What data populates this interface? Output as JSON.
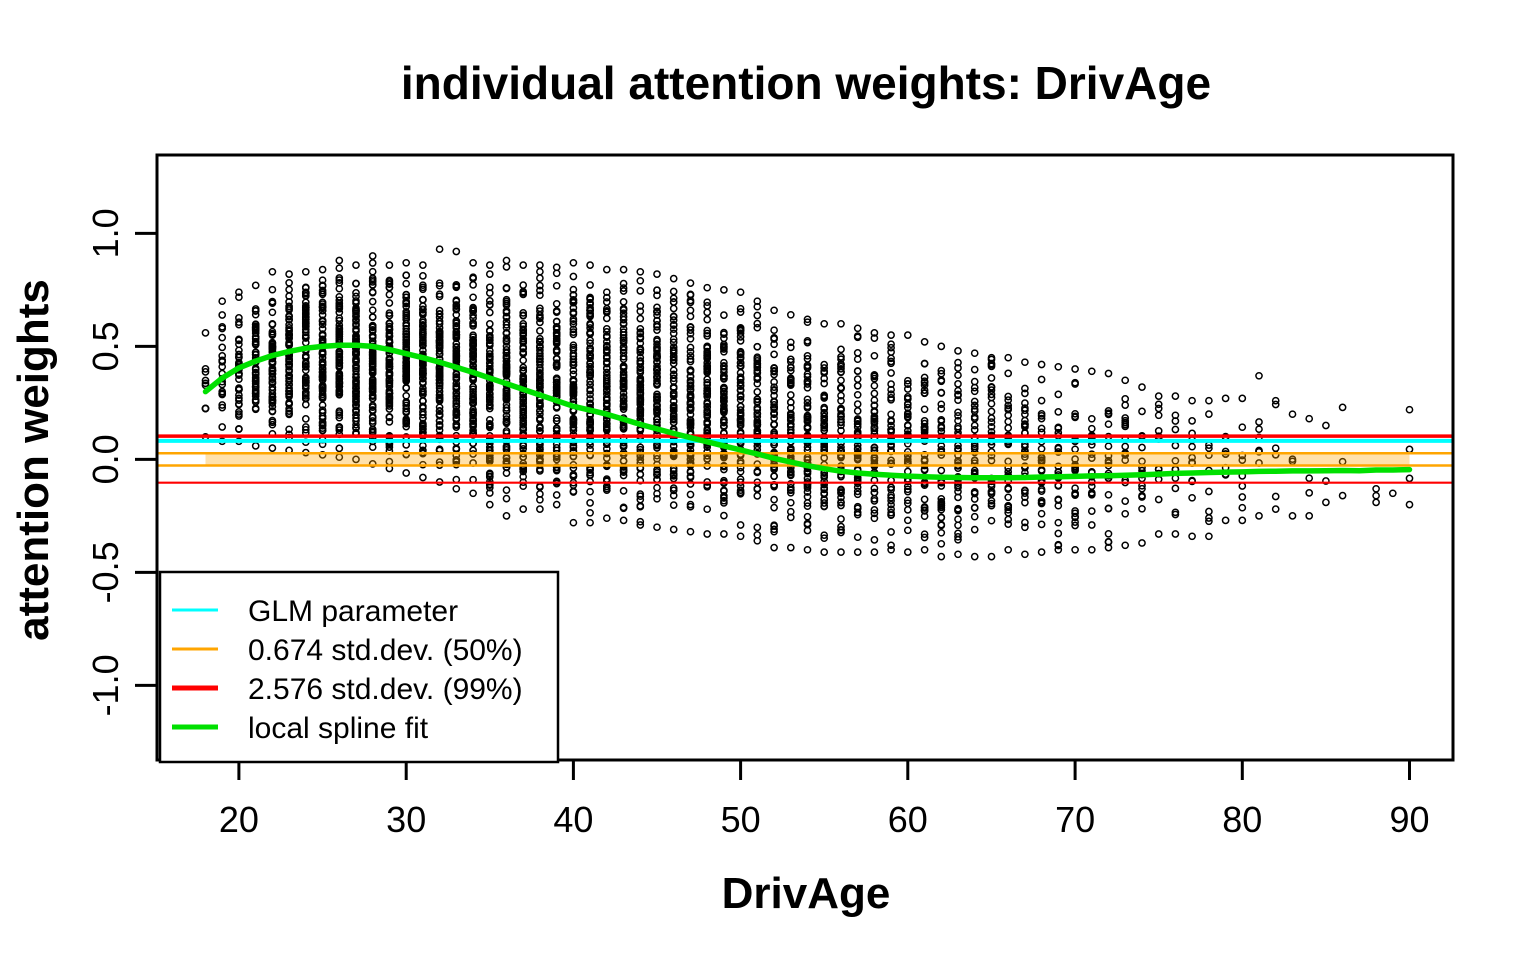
{
  "chart_data": {
    "type": "scatter",
    "title": "individual attention weights: DrivAge",
    "xlabel": "DrivAge",
    "ylabel": "attention weights",
    "xlim": [
      15.1,
      92.6
    ],
    "ylim": [
      -1.33,
      1.347
    ],
    "x_ticks": [
      {
        "v": 20,
        "label": "20"
      },
      {
        "v": 30,
        "label": "30"
      },
      {
        "v": 40,
        "label": "40"
      },
      {
        "v": 50,
        "label": "50"
      },
      {
        "v": 60,
        "label": "60"
      },
      {
        "v": 70,
        "label": "70"
      },
      {
        "v": 80,
        "label": "80"
      },
      {
        "v": 90,
        "label": "90"
      }
    ],
    "y_ticks": [
      {
        "v": -1.0,
        "label": "-1.0"
      },
      {
        "v": -0.5,
        "label": "-0.5"
      },
      {
        "v": 0.0,
        "label": "0.0"
      },
      {
        "v": 0.5,
        "label": "0.5"
      },
      {
        "v": 1.0,
        "label": "1.0"
      }
    ],
    "grid": false,
    "point_style": "open-circle",
    "hlines": {
      "glm_parameter": 0.082,
      "band50": 0.027,
      "band99": 0.103
    },
    "band_fill": {
      "x_range": [
        18,
        90
      ],
      "y_range": [
        -0.027,
        0.027
      ]
    },
    "spline": [
      [
        18,
        0.3
      ],
      [
        19,
        0.36
      ],
      [
        20,
        0.405
      ],
      [
        21,
        0.435
      ],
      [
        22,
        0.46
      ],
      [
        23,
        0.478
      ],
      [
        24,
        0.492
      ],
      [
        25,
        0.5
      ],
      [
        26,
        0.505
      ],
      [
        27,
        0.505
      ],
      [
        28,
        0.5
      ],
      [
        29,
        0.486
      ],
      [
        30,
        0.468
      ],
      [
        31,
        0.45
      ],
      [
        32,
        0.43
      ],
      [
        33,
        0.408
      ],
      [
        34,
        0.385
      ],
      [
        35,
        0.36
      ],
      [
        36,
        0.335
      ],
      [
        37,
        0.31
      ],
      [
        38,
        0.285
      ],
      [
        39,
        0.26
      ],
      [
        40,
        0.235
      ],
      [
        41,
        0.218
      ],
      [
        42,
        0.2
      ],
      [
        43,
        0.178
      ],
      [
        44,
        0.155
      ],
      [
        45,
        0.135
      ],
      [
        46,
        0.115
      ],
      [
        47,
        0.096
      ],
      [
        48,
        0.078
      ],
      [
        49,
        0.06
      ],
      [
        50,
        0.042
      ],
      [
        51,
        0.024
      ],
      [
        52,
        0.005
      ],
      [
        53,
        -0.012
      ],
      [
        54,
        -0.028
      ],
      [
        55,
        -0.041
      ],
      [
        56,
        -0.052
      ],
      [
        57,
        -0.06
      ],
      [
        58,
        -0.066
      ],
      [
        59,
        -0.07
      ],
      [
        60,
        -0.074
      ],
      [
        61,
        -0.077
      ],
      [
        62,
        -0.079
      ],
      [
        63,
        -0.08
      ],
      [
        64,
        -0.081
      ],
      [
        65,
        -0.081
      ],
      [
        66,
        -0.081
      ],
      [
        67,
        -0.08
      ],
      [
        68,
        -0.078
      ],
      [
        69,
        -0.077
      ],
      [
        70,
        -0.075
      ],
      [
        71,
        -0.073
      ],
      [
        72,
        -0.072
      ],
      [
        73,
        -0.07
      ],
      [
        74,
        -0.068
      ],
      [
        75,
        -0.065
      ],
      [
        76,
        -0.062
      ],
      [
        77,
        -0.06
      ],
      [
        78,
        -0.058
      ],
      [
        79,
        -0.056
      ],
      [
        80,
        -0.055
      ],
      [
        81,
        -0.053
      ],
      [
        82,
        -0.052
      ],
      [
        83,
        -0.051
      ],
      [
        84,
        -0.051
      ],
      [
        85,
        -0.05
      ],
      [
        86,
        -0.049
      ],
      [
        87,
        -0.05
      ],
      [
        88,
        -0.047
      ],
      [
        89,
        -0.047
      ],
      [
        90,
        -0.045
      ]
    ],
    "columns": [
      [
        18,
        10,
        0.1,
        0.56
      ],
      [
        19,
        22,
        0.08,
        0.7
      ],
      [
        20,
        40,
        0.08,
        0.74
      ],
      [
        21,
        55,
        0.06,
        0.77
      ],
      [
        22,
        70,
        0.05,
        0.83
      ],
      [
        23,
        72,
        0.04,
        0.82
      ],
      [
        24,
        78,
        0.03,
        0.83
      ],
      [
        25,
        82,
        0.02,
        0.84
      ],
      [
        26,
        85,
        0.01,
        0.88
      ],
      [
        27,
        88,
        0.0,
        0.86
      ],
      [
        28,
        90,
        -0.02,
        0.9
      ],
      [
        29,
        90,
        -0.04,
        0.86
      ],
      [
        30,
        92,
        -0.06,
        0.87
      ],
      [
        31,
        92,
        -0.08,
        0.86
      ],
      [
        32,
        94,
        -0.1,
        0.93
      ],
      [
        33,
        94,
        -0.13,
        0.92
      ],
      [
        34,
        94,
        -0.15,
        0.87
      ],
      [
        35,
        94,
        -0.2,
        0.86
      ],
      [
        36,
        94,
        -0.25,
        0.88
      ],
      [
        37,
        92,
        -0.22,
        0.86
      ],
      [
        38,
        92,
        -0.22,
        0.86
      ],
      [
        39,
        90,
        -0.2,
        0.85
      ],
      [
        40,
        90,
        -0.28,
        0.87
      ],
      [
        41,
        90,
        -0.28,
        0.86
      ],
      [
        42,
        88,
        -0.26,
        0.84
      ],
      [
        43,
        86,
        -0.27,
        0.84
      ],
      [
        44,
        86,
        -0.29,
        0.83
      ],
      [
        45,
        84,
        -0.3,
        0.82
      ],
      [
        46,
        84,
        -0.31,
        0.8
      ],
      [
        47,
        80,
        -0.32,
        0.78
      ],
      [
        48,
        78,
        -0.33,
        0.76
      ],
      [
        49,
        76,
        -0.33,
        0.75
      ],
      [
        50,
        74,
        -0.34,
        0.74
      ],
      [
        51,
        70,
        -0.36,
        0.7
      ],
      [
        52,
        68,
        -0.39,
        0.66
      ],
      [
        53,
        66,
        -0.39,
        0.64
      ],
      [
        54,
        64,
        -0.4,
        0.62
      ],
      [
        55,
        60,
        -0.41,
        0.6
      ],
      [
        56,
        58,
        -0.41,
        0.6
      ],
      [
        57,
        55,
        -0.41,
        0.58
      ],
      [
        58,
        52,
        -0.41,
        0.56
      ],
      [
        59,
        50,
        -0.4,
        0.55
      ],
      [
        60,
        48,
        -0.41,
        0.55
      ],
      [
        61,
        45,
        -0.4,
        0.52
      ],
      [
        62,
        44,
        -0.43,
        0.5
      ],
      [
        63,
        42,
        -0.42,
        0.48
      ],
      [
        64,
        40,
        -0.43,
        0.47
      ],
      [
        65,
        38,
        -0.43,
        0.45
      ],
      [
        66,
        35,
        -0.4,
        0.45
      ],
      [
        67,
        32,
        -0.42,
        0.43
      ],
      [
        68,
        30,
        -0.41,
        0.42
      ],
      [
        69,
        28,
        -0.4,
        0.41
      ],
      [
        70,
        26,
        -0.4,
        0.4
      ],
      [
        71,
        24,
        -0.4,
        0.39
      ],
      [
        72,
        22,
        -0.39,
        0.38
      ],
      [
        73,
        20,
        -0.38,
        0.35
      ],
      [
        74,
        18,
        -0.37,
        0.32
      ],
      [
        75,
        15,
        -0.33,
        0.28
      ],
      [
        76,
        13,
        -0.33,
        0.28
      ],
      [
        77,
        12,
        -0.34,
        0.26
      ],
      [
        78,
        11,
        -0.34,
        0.26
      ],
      [
        79,
        10,
        -0.27,
        0.27
      ],
      [
        80,
        9,
        -0.27,
        0.27
      ],
      [
        81,
        8,
        -0.25,
        0.37
      ],
      [
        82,
        7,
        -0.22,
        0.26
      ],
      [
        83,
        4,
        -0.25,
        0.2
      ],
      [
        84,
        4,
        -0.25,
        0.18
      ],
      [
        85,
        3,
        -0.19,
        0.15
      ],
      [
        86,
        3,
        -0.16,
        0.23
      ],
      [
        88,
        3,
        -0.19,
        -0.13
      ],
      [
        89,
        1,
        -0.15,
        -0.15
      ],
      [
        90,
        4,
        -0.2,
        0.22
      ]
    ],
    "legend": {
      "position": "bottomleft",
      "entries": [
        {
          "label": "GLM parameter",
          "color": "#00FFFF",
          "lwd": 3
        },
        {
          "label": "0.674 std.dev. (50%)",
          "color": "#FFA500",
          "lwd": 3
        },
        {
          "label": "2.576 std.dev. (99%)",
          "color": "#FF0000",
          "lwd": 5
        },
        {
          "label": "local spline fit",
          "color": "#00E000",
          "lwd": 5
        }
      ]
    },
    "colors": {
      "points": "#000000",
      "glm": "#00FFFF",
      "band50": "#FFA500",
      "band99": "#FF0000",
      "band_fill": "rgba(255,165,0,0.33)",
      "spline": "#00E000",
      "frame": "#000000",
      "background": "#FFFFFF"
    }
  }
}
